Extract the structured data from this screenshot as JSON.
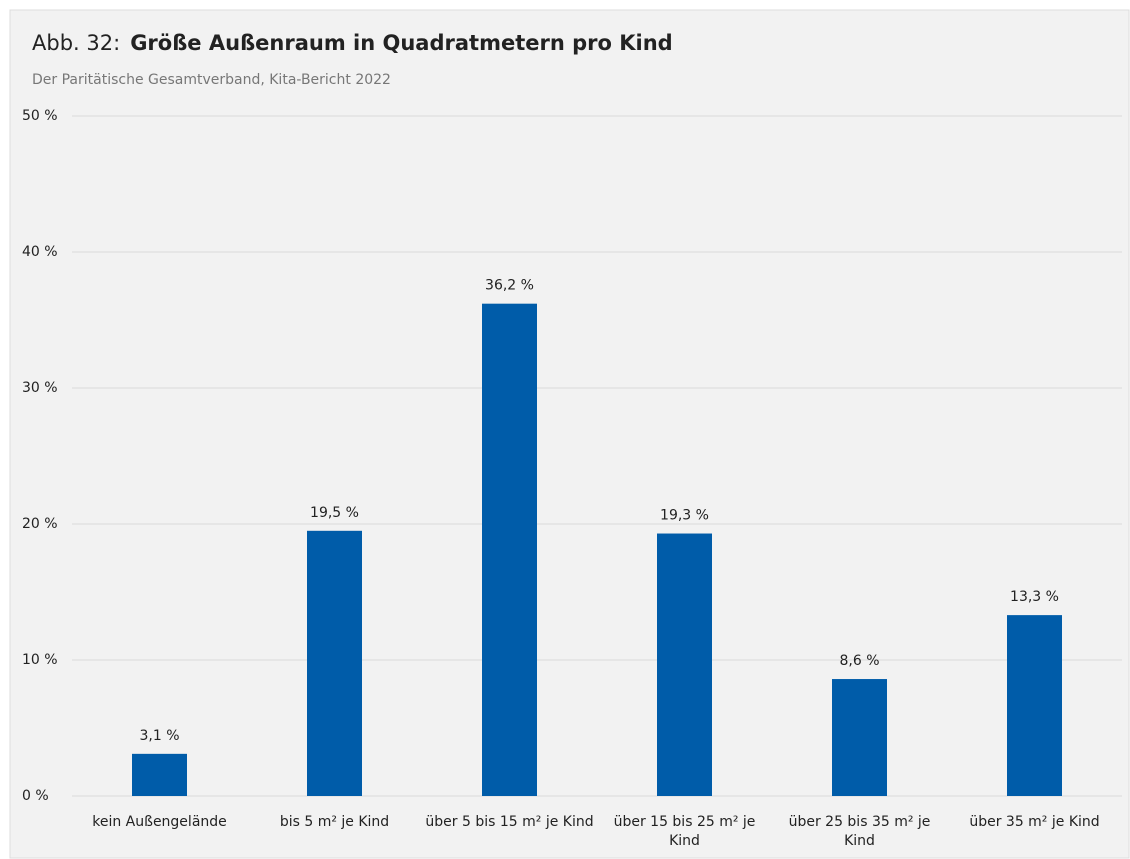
{
  "chart_data": {
    "type": "bar",
    "title_prefix": "Abb. 32:",
    "title": "Größe Außenraum in Quadratmetern pro Kind",
    "subtitle": "Der Paritätische Gesamtverband, Kita-Bericht 2022",
    "categories": [
      "kein Außengelände",
      "bis 5 m² je Kind",
      "über 5 bis 15 m² je Kind",
      "über 15 bis 25 m² je Kind",
      "über 25 bis 35 m² je Kind",
      "über 35 m² je Kind"
    ],
    "values": [
      3.1,
      19.5,
      36.2,
      19.3,
      8.6,
      13.3
    ],
    "value_labels": [
      "3,1 %",
      "19,5 %",
      "36,2 %",
      "19,3 %",
      "8,6 %",
      "13,3 %"
    ],
    "color": "#005ca9",
    "ylim": [
      0,
      50
    ],
    "yticks": [
      {
        "value": 0,
        "label": "0 %"
      },
      {
        "value": 10,
        "label": "10 %"
      },
      {
        "value": 20,
        "label": "20 %"
      },
      {
        "value": 30,
        "label": "30 %"
      },
      {
        "value": 40,
        "label": "40 %"
      },
      {
        "value": 50,
        "label": "50 %"
      }
    ],
    "grid": true
  }
}
